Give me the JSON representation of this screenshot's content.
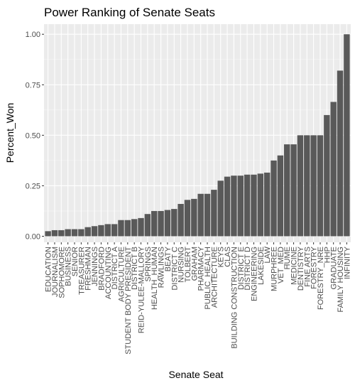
{
  "chart_data": {
    "type": "bar",
    "title": "Power Ranking of Senate Seats",
    "xlabel": "Senate Seat",
    "ylabel": "Percent_Won",
    "ylim": [
      -0.03,
      1.05
    ],
    "yticks": [
      0.0,
      0.25,
      0.5,
      0.75,
      1.0
    ],
    "ytick_labels": [
      "0.00",
      "0.25",
      "0.50",
      "0.75",
      "1.00"
    ],
    "grid": true,
    "bar_color": "#595959",
    "panel_color": "#ebebeb",
    "categories": [
      "EDUCATION",
      "JOURNALISM",
      "SOPHOMORE",
      "BUSINESS",
      "SENIOR",
      "TREASURER",
      "FRESHMAN",
      "JENNINGS",
      "BRADFORD",
      "ACCOUNTING",
      "DISTRICT A",
      "AGRICULTURE",
      "STUDENT BODY PRESIDENT",
      "DISTRICT B",
      "REID-YULEE-MALLORY",
      "SPRINGS",
      "HEALTH_HUMAN",
      "RAWLINGS",
      "BEATY",
      "DISTRICT C",
      "NURSING",
      "TOLBERT",
      "GRAHAM",
      "PHARMACY",
      "PUBLIC_HEALTH",
      "ARCHITECTURE",
      "KEYS",
      "CLAS",
      "BUILDING CONSTRUCTION",
      "DISTRICT E",
      "DISTRICT D",
      "ENGINEERING",
      "LAKESIDE",
      "LAW",
      "MURPHREE",
      "VET_MED",
      "HUME",
      "MEDICINE",
      "DENTISTRY",
      "FINE ARTS",
      "FORESTRY",
      "FORESTRY_NRE",
      "HHP",
      "GRADUATE",
      "FAMILY HOUSING",
      "INFINITY"
    ],
    "values": [
      0.025,
      0.03,
      0.03,
      0.035,
      0.035,
      0.035,
      0.045,
      0.05,
      0.055,
      0.06,
      0.06,
      0.08,
      0.08,
      0.085,
      0.09,
      0.11,
      0.125,
      0.125,
      0.13,
      0.135,
      0.16,
      0.18,
      0.185,
      0.21,
      0.21,
      0.23,
      0.275,
      0.295,
      0.3,
      0.3,
      0.305,
      0.305,
      0.31,
      0.315,
      0.375,
      0.4,
      0.455,
      0.455,
      0.5,
      0.5,
      0.5,
      0.5,
      0.6,
      0.665,
      0.82,
      1.0
    ]
  }
}
